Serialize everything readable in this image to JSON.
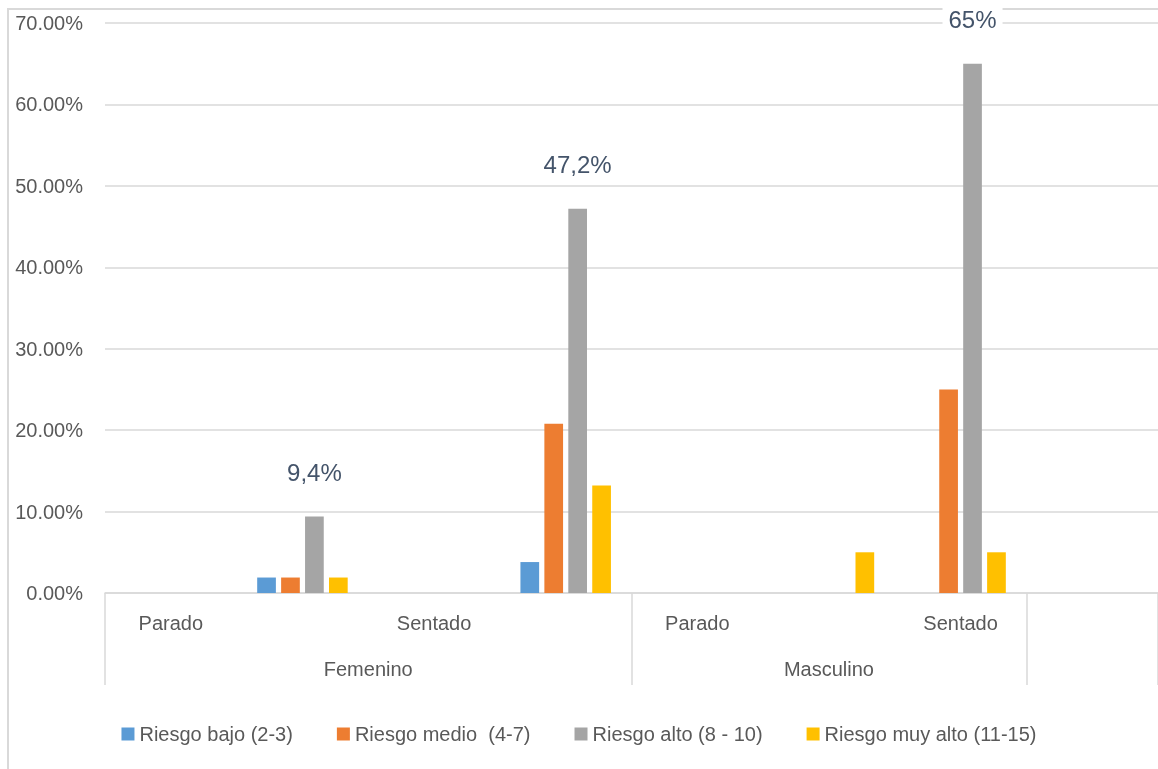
{
  "chart_data": {
    "type": "bar",
    "categories": [
      "Parado",
      null,
      "Sentado",
      null,
      "Parado",
      null,
      "Sentado",
      null
    ],
    "series": [
      {
        "name": "Riesgo bajo (2-3)",
        "color": "#5b9bd5",
        "values": [
          null,
          1.9,
          null,
          3.8,
          null,
          null,
          null,
          null
        ]
      },
      {
        "name": "Riesgo medio  (4-7)",
        "color": "#ed7d31",
        "values": [
          null,
          1.9,
          null,
          20.8,
          null,
          null,
          25,
          null
        ]
      },
      {
        "name": "Riesgo alto (8 - 10)",
        "color": "#a5a5a5",
        "values": [
          null,
          9.4,
          null,
          47.2,
          null,
          null,
          65,
          null
        ],
        "value_labels": [
          null,
          "9,4%",
          null,
          "47,2%",
          null,
          null,
          "65%",
          null
        ]
      },
      {
        "name": "Riesgo muy alto (11-15)",
        "color": "#ffc000",
        "values": [
          null,
          1.9,
          null,
          13.2,
          null,
          5,
          5,
          null
        ]
      }
    ],
    "ylim": [
      0,
      70
    ],
    "yticks": [
      {
        "value": 0,
        "label": "0.00%"
      },
      {
        "value": 10,
        "label": "10.00%"
      },
      {
        "value": 20,
        "label": "20.00%"
      },
      {
        "value": 30,
        "label": "30.00%"
      },
      {
        "value": 40,
        "label": "40.00%"
      },
      {
        "value": 50,
        "label": "50.00%"
      },
      {
        "value": 60,
        "label": "60.00%"
      },
      {
        "value": 70,
        "label": "70.00%"
      }
    ],
    "grid": "y",
    "legend": "bottom",
    "annotations": [
      "Femenino",
      "Masculino"
    ]
  }
}
